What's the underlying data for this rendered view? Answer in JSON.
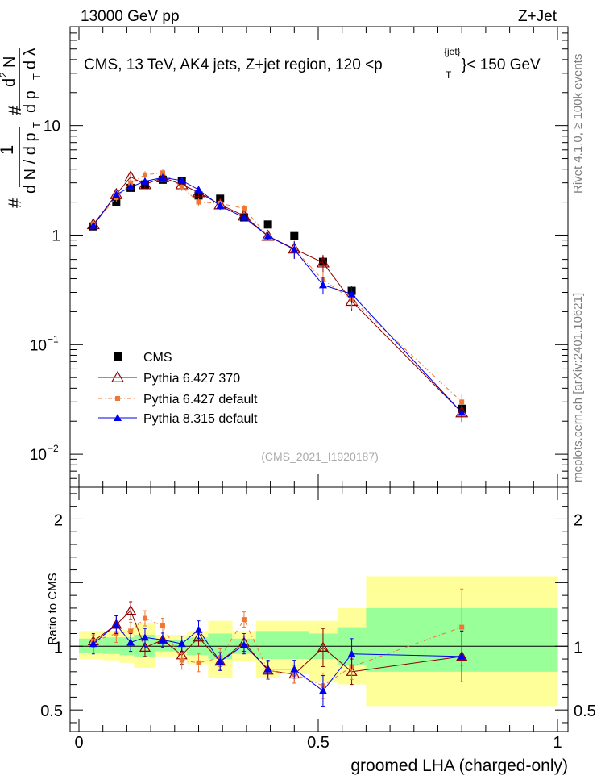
{
  "header": {
    "left": "13000 GeV pp",
    "right": "Z+Jet"
  },
  "side_labels": {
    "rivet": "Rivet 4.1.0, ≥ 100k events",
    "mcplots": "mcplots.cern.ch [arXiv:2401.10621]"
  },
  "chart_data": [
    {
      "type": "line",
      "title_parts": [
        "CMS, 13 TeV, AK4 jets, Z+jet region, 120 <p",
        "{jet}",
        "T",
        "}< 150 GeV"
      ],
      "ylabel_parts": [
        "#",
        "1",
        "d N / d p",
        "T",
        "#",
        "d",
        "2",
        "N",
        "d p",
        "T",
        "d λ"
      ],
      "xlabel": "groomed LHA (charged-only)",
      "yscale": "log",
      "xlim": [
        0,
        1
      ],
      "ylim": [
        0.005,
        80
      ],
      "yticks": [
        {
          "v": 0.01,
          "base": "10",
          "exp": "−2"
        },
        {
          "v": 0.1,
          "base": "10",
          "exp": "−1"
        },
        {
          "v": 1,
          "base": "1",
          "exp": ""
        },
        {
          "v": 10,
          "base": "10",
          "exp": ""
        }
      ],
      "watermark": "(CMS_2021_I1920187)",
      "x": [
        0.03,
        0.078,
        0.108,
        0.138,
        0.175,
        0.215,
        0.25,
        0.295,
        0.345,
        0.395,
        0.45,
        0.51,
        0.57,
        0.8
      ],
      "series": [
        {
          "name": "CMS",
          "values": [
            1.2,
            2.0,
            2.7,
            2.9,
            3.2,
            3.1,
            2.3,
            2.15,
            1.45,
            1.25,
            0.98,
            0.57,
            0.31,
            0.026
          ],
          "color": "#000000",
          "marker": "square"
        },
        {
          "name": "Pythia 6.427 370",
          "values": [
            1.25,
            2.35,
            3.4,
            2.9,
            3.35,
            2.9,
            2.45,
            1.9,
            1.5,
            0.98,
            0.75,
            0.56,
            0.25,
            0.024
          ],
          "color": "#8b0000",
          "marker": "open-triangle"
        },
        {
          "name": "Pythia 6.427 default",
          "values": [
            1.25,
            2.2,
            3.0,
            3.55,
            3.7,
            2.75,
            2.0,
            1.95,
            1.75,
            0.97,
            0.74,
            0.39,
            0.26,
            0.03
          ],
          "color": "#ee7733",
          "marker": "small-square",
          "dashed": true
        },
        {
          "name": "Pythia 8.315 default",
          "values": [
            1.22,
            2.35,
            2.75,
            3.1,
            3.35,
            3.15,
            2.6,
            1.85,
            1.45,
            0.98,
            0.74,
            0.35,
            0.29,
            0.024
          ],
          "color": "#0000ee",
          "marker": "triangle"
        }
      ]
    },
    {
      "type": "line",
      "ylabel": "Ratio to CMS",
      "xlim": [
        0,
        1
      ],
      "ylim": [
        0.33,
        2.25
      ],
      "yticks": [
        {
          "v": 0.5,
          "label": "0.5"
        },
        {
          "v": 1,
          "label": "1"
        },
        {
          "v": 2,
          "label": "2"
        }
      ],
      "xticks": [
        {
          "v": 0,
          "label": "0"
        },
        {
          "v": 0.5,
          "label": "0.5"
        },
        {
          "v": 1,
          "label": "1"
        }
      ],
      "bins": [
        0,
        0.05,
        0.085,
        0.115,
        0.16,
        0.19,
        0.225,
        0.27,
        0.32,
        0.37,
        0.42,
        0.48,
        0.54,
        0.6,
        1.0
      ],
      "band_inner": [
        [
          0.95,
          1.06
        ],
        [
          0.94,
          1.07
        ],
        [
          0.93,
          1.07
        ],
        [
          0.92,
          1.09
        ],
        [
          0.96,
          1.05
        ],
        [
          0.96,
          1.05
        ],
        [
          0.93,
          1.07
        ],
        [
          0.9,
          1.1
        ],
        [
          0.94,
          1.06
        ],
        [
          0.9,
          1.12
        ],
        [
          0.9,
          1.12
        ],
        [
          0.9,
          1.1
        ],
        [
          0.85,
          1.15
        ],
        [
          0.8,
          1.3
        ]
      ],
      "band_outer": [
        [
          0.9,
          1.12
        ],
        [
          0.89,
          1.12
        ],
        [
          0.87,
          1.13
        ],
        [
          0.83,
          1.18
        ],
        [
          0.92,
          1.09
        ],
        [
          0.92,
          1.09
        ],
        [
          0.86,
          1.12
        ],
        [
          0.75,
          1.2
        ],
        [
          0.88,
          1.12
        ],
        [
          0.75,
          1.2
        ],
        [
          0.78,
          1.2
        ],
        [
          0.72,
          1.2
        ],
        [
          0.7,
          1.3
        ],
        [
          0.53,
          1.55
        ]
      ],
      "x": [
        0.03,
        0.078,
        0.108,
        0.138,
        0.175,
        0.215,
        0.25,
        0.295,
        0.345,
        0.395,
        0.45,
        0.51,
        0.57,
        0.8
      ],
      "series": [
        {
          "name": "Pythia 6.427 370",
          "values": [
            1.04,
            1.17,
            1.28,
            0.99,
            1.05,
            0.93,
            1.07,
            0.88,
            1.03,
            0.81,
            0.78,
            0.99,
            0.8,
            0.92
          ],
          "errors": [
            0.05,
            0.07,
            0.07,
            0.07,
            0.06,
            0.07,
            0.07,
            0.07,
            0.07,
            0.07,
            0.07,
            0.15,
            0.1,
            0.2
          ],
          "color": "#8b0000",
          "marker": "open-triangle"
        },
        {
          "name": "Pythia 6.427 default",
          "values": [
            1.04,
            1.1,
            1.12,
            1.22,
            1.16,
            0.89,
            0.87,
            0.91,
            1.21,
            0.81,
            0.78,
            0.69,
            0.84,
            1.15
          ],
          "errors": [
            0.05,
            0.07,
            0.07,
            0.06,
            0.06,
            0.07,
            0.07,
            0.07,
            0.06,
            0.07,
            0.07,
            0.1,
            0.1,
            0.3
          ],
          "color": "#ee7733",
          "marker": "small-square",
          "dashed": true
        },
        {
          "name": "Pythia 8.315 default",
          "values": [
            1.02,
            1.17,
            1.03,
            1.07,
            1.05,
            1.02,
            1.13,
            0.88,
            1.01,
            0.82,
            0.82,
            0.65,
            0.94,
            0.92
          ],
          "errors": [
            0.08,
            0.07,
            0.07,
            0.07,
            0.06,
            0.06,
            0.07,
            0.07,
            0.07,
            0.07,
            0.07,
            0.12,
            0.12,
            0.2
          ],
          "color": "#0000ee",
          "marker": "triangle"
        }
      ]
    }
  ]
}
